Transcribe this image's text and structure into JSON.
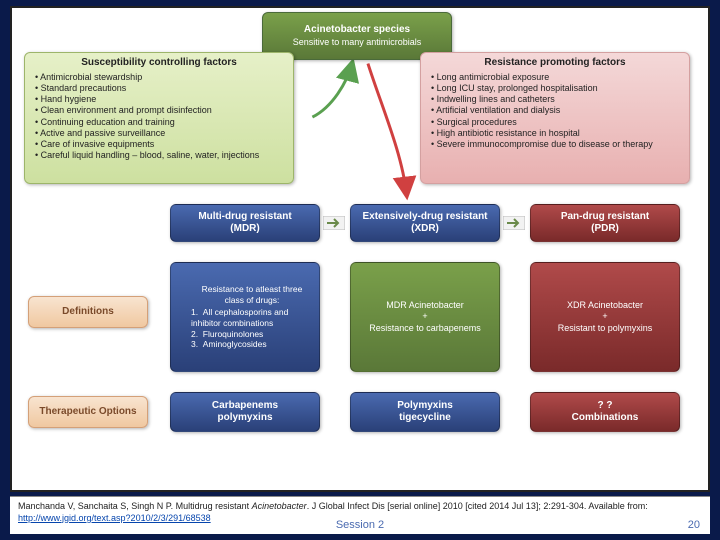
{
  "background_color": "#0a1a4a",
  "frame_border": "#222222",
  "top": {
    "title_line1": "Acinetobacter species",
    "title_line2": "Sensitive to many antimicrobials",
    "bg_gradient": [
      "#7aa04a",
      "#5a7838"
    ],
    "text_color": "#ffffff"
  },
  "susceptibility": {
    "title": "Susceptibility controlling factors",
    "items": [
      "Antimicrobial stewardship",
      "Standard precautions",
      "Hand hygiene",
      "Clean environment and prompt disinfection",
      "Continuing education and training",
      "Active and passive surveillance",
      "Care of invasive equipments",
      "Careful liquid handling – blood, saline, water, injections"
    ],
    "bg_gradient": [
      "#e6f0c8",
      "#cde0a0"
    ]
  },
  "resistance": {
    "title": "Resistance promoting factors",
    "items": [
      "Long antimicrobial exposure",
      "Long ICU stay, prolonged hospitalisation",
      "Indwelling lines and catheters",
      "Artificial ventilation and dialysis",
      "Surgical procedures",
      "High antibiotic resistance in hospital",
      "Severe immunocompromise due to disease or therapy"
    ],
    "bg_gradient": [
      "#f4d8d8",
      "#e8b0b0"
    ]
  },
  "labels": {
    "definitions": "Definitions",
    "therapeutic": "Therapeutic Options",
    "bg_gradient": [
      "#f8e4d0",
      "#f0c8a0"
    ]
  },
  "columns": [
    {
      "header_line1": "Multi-drug resistant",
      "header_line2": "(MDR)",
      "header_bg": [
        "#4a6ab0",
        "#2a4078"
      ],
      "definition_mode": "list",
      "definition_heading": "Resistance to atleast three class of drugs:",
      "definition_items": [
        "All cephalosporins and inhibitor combinations",
        "Fluroquinolones",
        "Aminoglycosides"
      ],
      "definition_bg": [
        "#4a6ab0",
        "#2a4078"
      ],
      "therapy_line1": "Carbapenems",
      "therapy_line2": "polymyxins",
      "therapy_bg": [
        "#4a6ab0",
        "#2a4078"
      ]
    },
    {
      "header_line1": "Extensively-drug resistant",
      "header_line2": "(XDR)",
      "header_bg": [
        "#4a6ab0",
        "#2a4078"
      ],
      "definition_mode": "plus",
      "definition_line1": "MDR Acinetobacter",
      "definition_line2": "+",
      "definition_line3": "Resistance to carbapenems",
      "definition_bg": [
        "#7aa04a",
        "#5a7838"
      ],
      "therapy_line1": "Polymyxins",
      "therapy_line2": "tigecycline",
      "therapy_bg": [
        "#4a6ab0",
        "#2a4078"
      ]
    },
    {
      "header_line1": "Pan-drug resistant",
      "header_line2": "(PDR)",
      "header_bg": [
        "#b04a4a",
        "#7a2a2a"
      ],
      "definition_mode": "plus",
      "definition_line1": "XDR Acinetobacter",
      "definition_line2": "+",
      "definition_line3": "Resistant to polymyxins",
      "definition_bg": [
        "#b04a4a",
        "#7a2a2a"
      ],
      "therapy_line1": "? ?",
      "therapy_line2": "Combinations",
      "therapy_bg": [
        "#b04a4a",
        "#7a2a2a"
      ]
    }
  ],
  "arrows": {
    "up_color": "#5aa050",
    "down_color": "#d04040",
    "inter_bg": "#f2f2f2",
    "inter_arrow": "#6a8a4a"
  },
  "citation": {
    "text_prefix": "Manchanda V, Sanchaita S, Singh N P. Multidrug resistant ",
    "italic": "Acinetobacter",
    "text_suffix": ". J Global Infect Dis [serial online] 2010 [cited 2014 Jul 13]; 2:291-304. Available from: ",
    "link_text": "http://www.jgid.org/text.asp?2010/2/3/291/68538",
    "link_href": "http://www.jgid.org/text.asp?2010/2/3/291/68538"
  },
  "footer": {
    "session": "Session 2",
    "slide_number": "20"
  }
}
